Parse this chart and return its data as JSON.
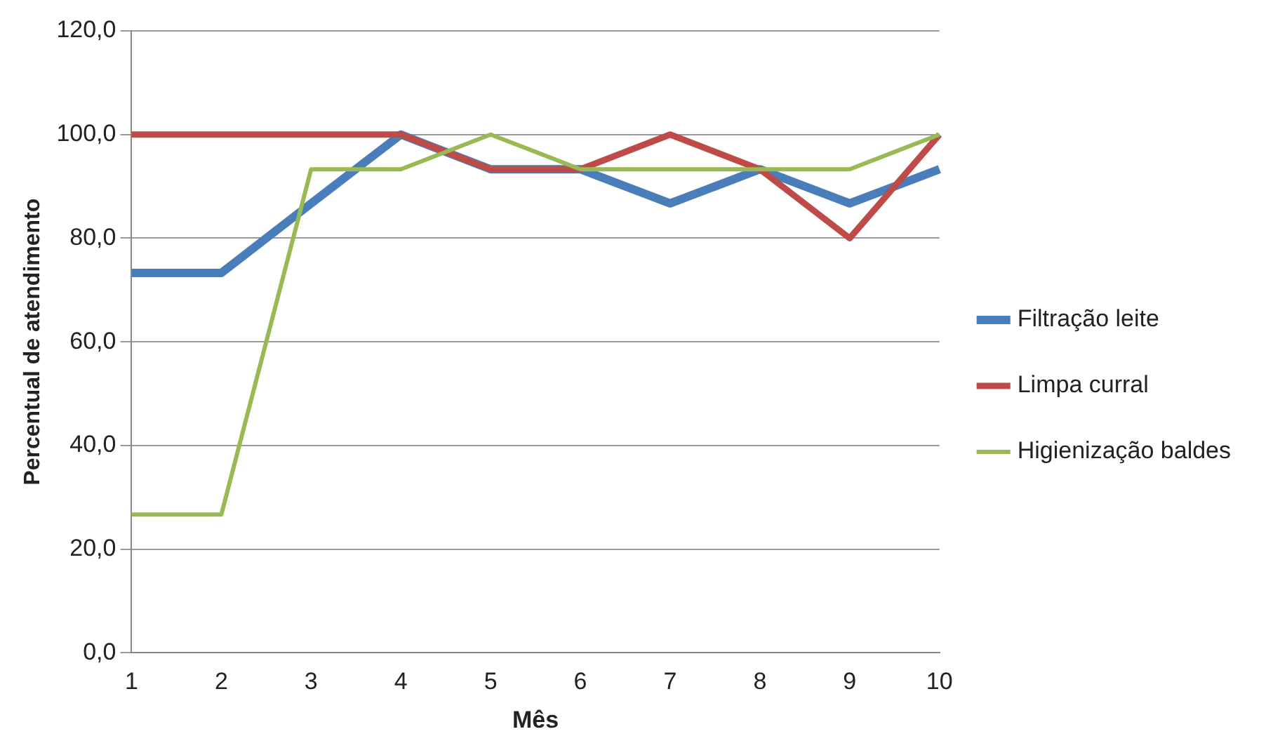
{
  "chart_data": {
    "type": "line",
    "xlabel": "Mês",
    "ylabel": "Percentual de atendimento",
    "categories": [
      "1",
      "2",
      "3",
      "4",
      "5",
      "6",
      "7",
      "8",
      "9",
      "10"
    ],
    "series": [
      {
        "name": "Filtração leite",
        "color": "#4a7ebb",
        "values": [
          73.3,
          73.3,
          86.7,
          100,
          93.3,
          93.3,
          86.7,
          93.3,
          86.7,
          93.3
        ]
      },
      {
        "name": "Limpa curral",
        "color": "#be4b48",
        "values": [
          100,
          100,
          100,
          100,
          93.3,
          93.3,
          100,
          93.3,
          80,
          100
        ]
      },
      {
        "name": "Higienização baldes",
        "color": "#98b954",
        "values": [
          26.7,
          26.7,
          93.3,
          93.3,
          100,
          93.3,
          93.3,
          93.3,
          93.3,
          100
        ]
      }
    ],
    "ylim": [
      0,
      120
    ],
    "yticks": [
      {
        "value": 0,
        "label": "0,0"
      },
      {
        "value": 20,
        "label": "20,0"
      },
      {
        "value": 40,
        "label": "40,0"
      },
      {
        "value": 60,
        "label": "60,0"
      },
      {
        "value": 80,
        "label": "80,0"
      },
      {
        "value": 100,
        "label": "100,0"
      },
      {
        "value": 120,
        "label": "120,0"
      }
    ],
    "grid": "y",
    "legend": "right",
    "marker": "none",
    "line_style": "solid"
  }
}
